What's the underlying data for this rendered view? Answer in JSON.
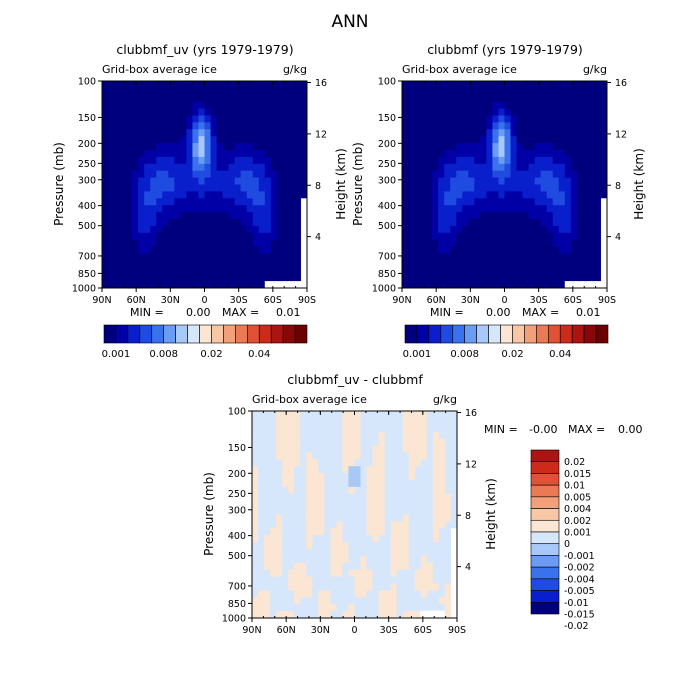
{
  "figure": {
    "title": "ANN"
  },
  "palettes": {
    "blue_red_17": [
      "#00007f",
      "#0000a6",
      "#0a1fcc",
      "#1f4be0",
      "#3a72ee",
      "#6a9cf4",
      "#a8c8f8",
      "#d7e7fb",
      "#fbe5d3",
      "#f8c7a6",
      "#f2a079",
      "#ea7a55",
      "#df5236",
      "#cc2b1c",
      "#ab1410",
      "#8a0707",
      "#6b0000"
    ],
    "diff": [
      "#00007f",
      "#0a1fcc",
      "#1f4be0",
      "#3a72ee",
      "#6a9cf4",
      "#a8c8f8",
      "#d7e7fb",
      "#fbe5d3",
      "#f8c7a6",
      "#f2a079",
      "#ea7a55",
      "#df5236",
      "#cc2b1c",
      "#ab1410"
    ]
  },
  "chart_data": [
    {
      "type": "heatmap",
      "title": "clubbmf_uv (yrs 1979-1979)",
      "subtitle_left": "Grid-box average ice",
      "subtitle_right": "g/kg",
      "xlabel": "",
      "ylabel": "Pressure (mb)",
      "ylabel_right": "Height (km)",
      "x_ticks": [
        "90N",
        "60N",
        "30N",
        "0",
        "30S",
        "60S",
        "90S"
      ],
      "y_ticks": [
        "100",
        "150",
        "200",
        "250",
        "300",
        "400",
        "500",
        "700",
        "850",
        "1000"
      ],
      "y_ticks_right": [
        "16",
        "12",
        "8",
        "4"
      ],
      "stats": {
        "min_label": "MIN =",
        "min": "0.00",
        "max_label": "MAX =",
        "max": "0.01"
      },
      "colorbar_labels": [
        "0.001",
        "0.008",
        "0.02",
        "0.04"
      ],
      "field": "ice_a"
    },
    {
      "type": "heatmap",
      "title": "clubbmf (yrs 1979-1979)",
      "subtitle_left": "Grid-box average ice",
      "subtitle_right": "g/kg",
      "xlabel": "",
      "ylabel": "Pressure (mb)",
      "ylabel_right": "Height (km)",
      "x_ticks": [
        "90N",
        "60N",
        "30N",
        "0",
        "30S",
        "60S",
        "90S"
      ],
      "y_ticks": [
        "100",
        "150",
        "200",
        "250",
        "300",
        "400",
        "500",
        "700",
        "850",
        "1000"
      ],
      "y_ticks_right": [
        "16",
        "12",
        "8",
        "4"
      ],
      "stats": {
        "min_label": "MIN =",
        "min": "0.00",
        "max_label": "MAX =",
        "max": "0.01"
      },
      "colorbar_labels": [
        "0.001",
        "0.008",
        "0.02",
        "0.04"
      ],
      "field": "ice_b"
    },
    {
      "type": "heatmap",
      "title": "clubbmf_uv - clubbmf",
      "subtitle_left": "Grid-box average ice",
      "subtitle_right": "g/kg",
      "xlabel": "",
      "ylabel": "Pressure (mb)",
      "ylabel_right": "Height (km)",
      "x_ticks": [
        "90N",
        "60N",
        "30N",
        "0",
        "30S",
        "60S",
        "90S"
      ],
      "y_ticks": [
        "100",
        "150",
        "200",
        "250",
        "300",
        "400",
        "500",
        "700",
        "850",
        "1000"
      ],
      "y_ticks_right": [
        "16",
        "12",
        "8",
        "4"
      ],
      "stats": {
        "min_label": "MIN =",
        "min": "-0.00",
        "max_label": "MAX =",
        "max": "0.00"
      },
      "colorbar_labels": [
        "0.02",
        "0.015",
        "0.01",
        "0.005",
        "0.004",
        "0.002",
        "0.001",
        "0",
        "-0.001",
        "-0.002",
        "-0.004",
        "-0.005",
        "-0.01",
        "-0.015",
        "-0.02"
      ],
      "field": "diff"
    }
  ]
}
